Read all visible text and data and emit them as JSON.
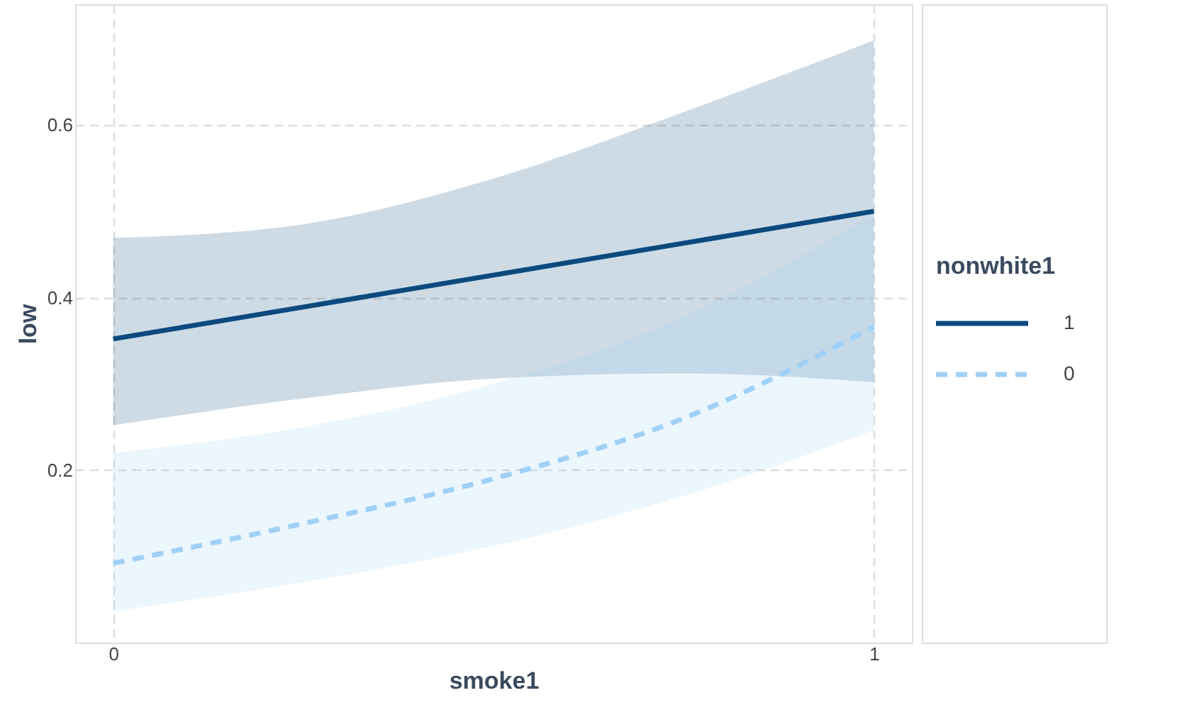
{
  "chart_data": {
    "type": "line",
    "xlabel": "smoke1",
    "ylabel": "low",
    "legend_title": "nonwhite1",
    "xlim": [
      -0.05,
      1.05
    ],
    "ylim": [
      0,
      0.74
    ],
    "xticks": [
      0,
      1
    ],
    "yticks": [
      0.2,
      0.4,
      0.6
    ],
    "grid": true,
    "legend": "right",
    "x": [
      0,
      0.25,
      0.5,
      0.75,
      1
    ],
    "series": [
      {
        "name": "1",
        "color": "#0b4a7e",
        "line_style": "solid",
        "values": [
          0.352,
          0.389,
          0.426,
          0.463,
          0.5
        ],
        "lower": [
          0.252,
          0.283,
          0.306,
          0.312,
          0.302
        ],
        "upper": [
          0.469,
          0.485,
          0.538,
          0.615,
          0.698
        ]
      },
      {
        "name": "0",
        "color": "#9fd0f7",
        "line_style": "dashed",
        "values": [
          0.092,
          0.138,
          0.19,
          0.26,
          0.366
        ],
        "lower": [
          0.036,
          0.07,
          0.112,
          0.17,
          0.246
        ],
        "upper": [
          0.22,
          0.25,
          0.3,
          0.378,
          0.497
        ]
      }
    ]
  }
}
